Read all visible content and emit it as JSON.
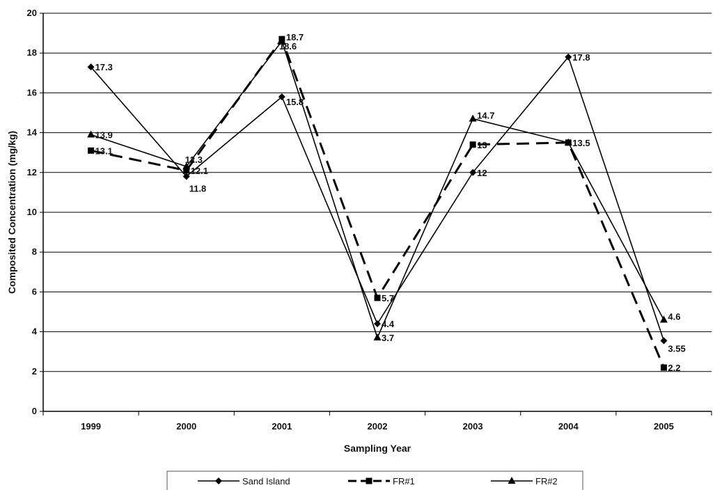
{
  "chart_data": {
    "type": "line",
    "xlabel": "Sampling Year",
    "ylabel": "Composited Concentration (mg/kg)",
    "categories": [
      "1999",
      "2000",
      "2001",
      "2002",
      "2003",
      "2004",
      "2005"
    ],
    "ylim": [
      0,
      20
    ],
    "yticks": [
      0,
      2,
      4,
      6,
      8,
      10,
      12,
      14,
      16,
      18,
      20
    ],
    "grid": true,
    "legend_position": "bottom",
    "series": [
      {
        "name": "Sand Island",
        "marker": "diamond",
        "line_style": "solid",
        "values": [
          17.3,
          11.8,
          15.8,
          4.4,
          12,
          17.8,
          3.55
        ],
        "labels": [
          "17.3",
          "11.8",
          "15.8",
          "4.4",
          "12",
          "17.8",
          "3.55"
        ]
      },
      {
        "name": "FR#1",
        "marker": "square",
        "line_style": "dashed",
        "values": [
          13.1,
          12.1,
          18.7,
          5.7,
          13.4,
          13.5,
          2.2
        ],
        "labels": [
          "13.1",
          "12.1",
          "18.7",
          "5.7",
          "13",
          "13.5",
          "2.2"
        ]
      },
      {
        "name": "FR#2",
        "marker": "triangle",
        "line_style": "solid",
        "values": [
          13.9,
          12.3,
          18.6,
          3.7,
          14.7,
          13.5,
          4.6
        ],
        "labels": [
          "13.9",
          "12.3",
          "18.6",
          "3.7",
          "14.7",
          "",
          "4.6"
        ]
      }
    ]
  }
}
